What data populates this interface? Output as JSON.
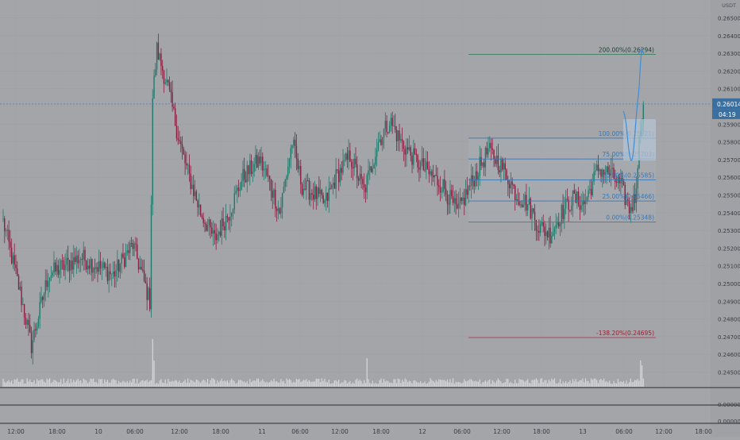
{
  "colors": {
    "background": "#a3a5a9",
    "axis_background": "#9fa1a5",
    "grid": "#9ea0a4",
    "up": "#1f7a6b",
    "down": "#8a1f3f",
    "volume": "#d6d8db",
    "fib_line": "#3a78b5",
    "fib_box": "#a9adb3",
    "target_line": "#3f7f5f",
    "target_text": "#1f3f2f",
    "extension_line": "#c0394f",
    "extension_text": "#9c1f33",
    "price_tag": "#3b6fa0",
    "projection": "#3d8ed6",
    "projection_zone": "#b6c6d6",
    "current_price_line": "#4a7db0"
  },
  "chart_data": {
    "type": "candlestick",
    "symbol_unit": "USDT",
    "y_axis": {
      "range": [
        0.244,
        0.2662
      ],
      "ticks": [
        "0.26500",
        "0.26400",
        "0.26300",
        "0.26200",
        "0.26100",
        "0.26000",
        "0.25900",
        "0.25800",
        "0.25700",
        "0.25600",
        "0.25500",
        "0.25400",
        "0.25300",
        "0.25200",
        "0.25100",
        "0.25000",
        "0.24900",
        "0.24800",
        "0.24700",
        "0.24600",
        "0.24500"
      ]
    },
    "x_axis": {
      "ticks": [
        "12:00",
        "18:00",
        "10",
        "06:00",
        "12:00",
        "18:00",
        "11",
        "06:00",
        "12:00",
        "18:00",
        "12",
        "06:00",
        "12:00",
        "18:00",
        "13",
        "06:00",
        "12:00",
        "18:00"
      ],
      "start_label": "12:00",
      "bar_interval_minutes": 15
    },
    "current_price": {
      "value": "0.26014",
      "countdown": "04:19"
    },
    "fib_levels": [
      {
        "label": "100.00%(0.25821)",
        "price": 0.25821
      },
      {
        "label": "75.00%(0.25703)",
        "price": 0.25703
      },
      {
        "label": "50.00%(0.25585)",
        "price": 0.25585
      },
      {
        "label": "25.00%(0.25466)",
        "price": 0.25466
      },
      {
        "label": "0.00%(0.25348)",
        "price": 0.25348
      }
    ],
    "target_level": {
      "label": "200.00%(0.26294)",
      "price": 0.26294
    },
    "extension_level": {
      "label": "-138.20%(0.24695)",
      "price": 0.24695
    },
    "volume_axis": {
      "ticks": [
        "0.00000",
        "0.00000"
      ]
    },
    "anchors": [
      {
        "bar": 0,
        "price": 0.2535
      },
      {
        "bar": 12,
        "price": 0.2495
      },
      {
        "bar": 20,
        "price": 0.2465
      },
      {
        "bar": 32,
        "price": 0.2505
      },
      {
        "bar": 55,
        "price": 0.2515
      },
      {
        "bar": 78,
        "price": 0.2505
      },
      {
        "bar": 92,
        "price": 0.2522
      },
      {
        "bar": 104,
        "price": 0.249
      },
      {
        "bar": 106,
        "price": 0.2605
      },
      {
        "bar": 109,
        "price": 0.2632
      },
      {
        "bar": 117,
        "price": 0.261
      },
      {
        "bar": 125,
        "price": 0.258
      },
      {
        "bar": 130,
        "price": 0.2565
      },
      {
        "bar": 140,
        "price": 0.254
      },
      {
        "bar": 150,
        "price": 0.2525
      },
      {
        "bar": 160,
        "price": 0.254
      },
      {
        "bar": 170,
        "price": 0.256
      },
      {
        "bar": 182,
        "price": 0.257
      },
      {
        "bar": 190,
        "price": 0.2555
      },
      {
        "bar": 196,
        "price": 0.254
      },
      {
        "bar": 205,
        "price": 0.258
      },
      {
        "bar": 212,
        "price": 0.2555
      },
      {
        "bar": 222,
        "price": 0.255
      },
      {
        "bar": 228,
        "price": 0.2545
      },
      {
        "bar": 236,
        "price": 0.256
      },
      {
        "bar": 246,
        "price": 0.2572
      },
      {
        "bar": 256,
        "price": 0.2552
      },
      {
        "bar": 266,
        "price": 0.258
      },
      {
        "bar": 274,
        "price": 0.2592
      },
      {
        "bar": 282,
        "price": 0.258
      },
      {
        "bar": 292,
        "price": 0.257
      },
      {
        "bar": 302,
        "price": 0.2562
      },
      {
        "bar": 312,
        "price": 0.2555
      },
      {
        "bar": 322,
        "price": 0.254
      },
      {
        "bar": 334,
        "price": 0.256
      },
      {
        "bar": 344,
        "price": 0.2575
      },
      {
        "bar": 352,
        "price": 0.2568
      },
      {
        "bar": 358,
        "price": 0.256
      },
      {
        "bar": 364,
        "price": 0.255
      },
      {
        "bar": 372,
        "price": 0.2545
      },
      {
        "bar": 380,
        "price": 0.2532
      },
      {
        "bar": 388,
        "price": 0.2528
      },
      {
        "bar": 396,
        "price": 0.254
      },
      {
        "bar": 404,
        "price": 0.2548
      },
      {
        "bar": 412,
        "price": 0.2545
      },
      {
        "bar": 422,
        "price": 0.2565
      },
      {
        "bar": 430,
        "price": 0.2562
      },
      {
        "bar": 438,
        "price": 0.2555
      },
      {
        "bar": 444,
        "price": 0.2542
      },
      {
        "bar": 448,
        "price": 0.2548
      },
      {
        "bar": 452,
        "price": 0.259
      },
      {
        "bar": 454,
        "price": 0.2601
      }
    ],
    "volume_spikes": [
      {
        "bar": 106,
        "relative": 1.0
      },
      {
        "bar": 107,
        "relative": 0.55
      },
      {
        "bar": 258,
        "relative": 0.6
      },
      {
        "bar": 452,
        "relative": 0.55
      },
      {
        "bar": 453,
        "relative": 0.45
      }
    ]
  }
}
